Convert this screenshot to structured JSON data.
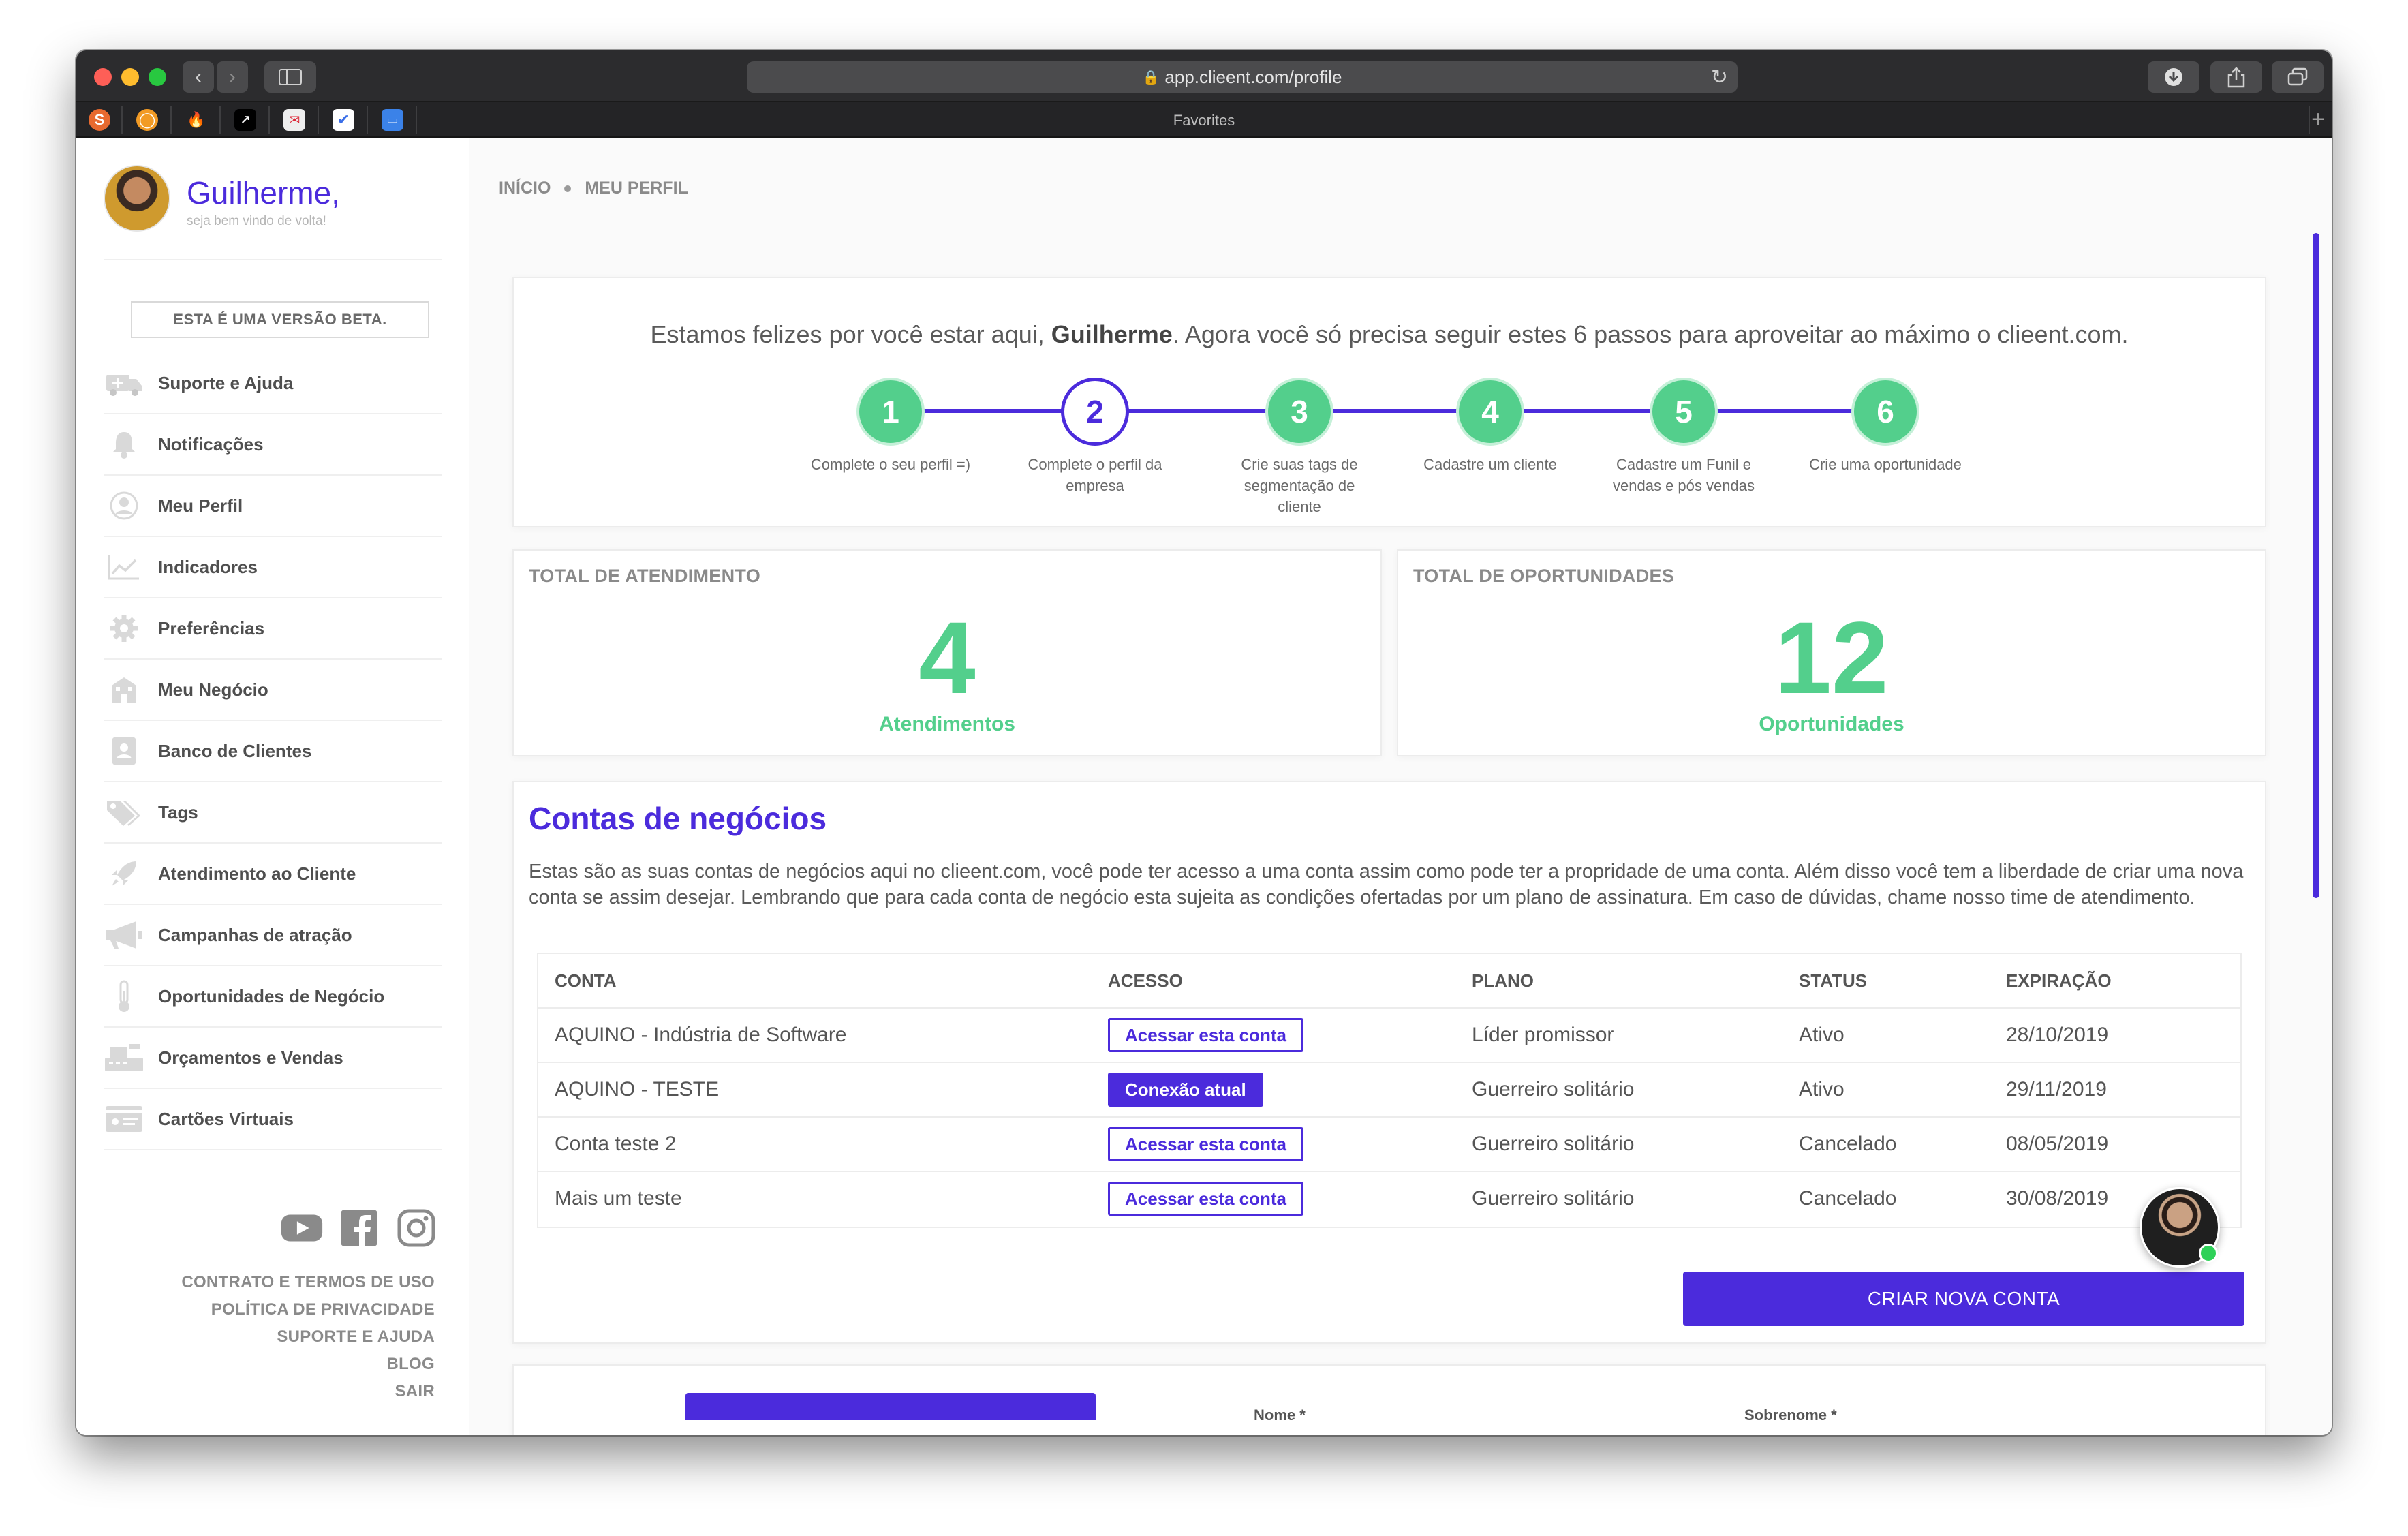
{
  "browser": {
    "url": "app.clieent.com/profile",
    "favorites_label": "Favorites"
  },
  "sidebar": {
    "user_name": "Guilherme,",
    "user_greeting": "seja bem vindo de volta!",
    "beta_label": "ESTA É UMA VERSÃO BETA.",
    "items": [
      {
        "label": "Suporte e Ajuda",
        "icon": "ambulance-icon"
      },
      {
        "label": "Notificações",
        "icon": "bell-icon"
      },
      {
        "label": "Meu Perfil",
        "icon": "user-circle-icon"
      },
      {
        "label": "Indicadores",
        "icon": "chart-line-icon"
      },
      {
        "label": "Preferências",
        "icon": "gear-icon"
      },
      {
        "label": "Meu Negócio",
        "icon": "building-icon"
      },
      {
        "label": "Banco de Clientes",
        "icon": "contact-card-icon"
      },
      {
        "label": "Tags",
        "icon": "tags-icon"
      },
      {
        "label": "Atendimento ao Cliente",
        "icon": "rocket-icon"
      },
      {
        "label": "Campanhas de atração",
        "icon": "megaphone-icon"
      },
      {
        "label": "Oportunidades de Negócio",
        "icon": "thermometer-icon"
      },
      {
        "label": "Orçamentos e Vendas",
        "icon": "cash-register-icon"
      },
      {
        "label": "Cartões Virtuais",
        "icon": "id-card-icon"
      }
    ],
    "social": [
      "youtube-icon",
      "facebook-icon",
      "instagram-icon"
    ],
    "footer_links": [
      "CONTRATO E TERMOS DE USO",
      "POLÍTICA DE PRIVACIDADE",
      "SUPORTE E AJUDA",
      "BLOG",
      "SAIR"
    ]
  },
  "breadcrumb": {
    "home": "INÍCIO",
    "current": "MEU PERFIL"
  },
  "welcome": {
    "text_before": "Estamos felizes por você estar aqui, ",
    "name": "Guilherme",
    "text_after": ". Agora você só precisa seguir estes 6 passos para aproveitar ao máximo o clieent.com.",
    "steps": [
      {
        "number": "1",
        "label": "Complete o seu perfil =)",
        "active": false
      },
      {
        "number": "2",
        "label": "Complete o perfil da empresa",
        "active": true
      },
      {
        "number": "3",
        "label": "Crie suas tags de segmentação de cliente",
        "active": false
      },
      {
        "number": "4",
        "label": "Cadastre um cliente",
        "active": false
      },
      {
        "number": "5",
        "label": "Cadastre um Funil e vendas e pós vendas",
        "active": false
      },
      {
        "number": "6",
        "label": "Crie uma oportunidade",
        "active": false
      }
    ]
  },
  "stats": [
    {
      "title": "TOTAL DE ATENDIMENTO",
      "value": "4",
      "label": "Atendimentos"
    },
    {
      "title": "TOTAL DE OPORTUNIDADES",
      "value": "12",
      "label": "Oportunidades"
    }
  ],
  "accounts": {
    "title": "Contas de negócios",
    "description": "Estas são as suas contas de negócios aqui no clieent.com, você pode ter acesso a uma conta assim como pode ter a propridade de uma conta. Além disso você tem a liberdade de criar uma nova conta se assim desejar. Lembrando que para cada conta de negócio esta sujeita as condições ofertadas por um plano de assinatura. Em caso de dúvidas, chame nosso time de atendimento.",
    "columns": [
      "CONTA",
      "ACESSO",
      "PLANO",
      "STATUS",
      "EXPIRAÇÃO"
    ],
    "rows": [
      {
        "conta": "AQUINO - Indústria de Software",
        "acesso": "Acessar esta conta",
        "current": false,
        "plano": "Líder promissor",
        "status": "Ativo",
        "expiracao": "28/10/2019"
      },
      {
        "conta": "AQUINO - TESTE",
        "acesso": "Conexão atual",
        "current": true,
        "plano": "Guerreiro solitário",
        "status": "Ativo",
        "expiracao": "29/11/2019"
      },
      {
        "conta": "Conta teste 2",
        "acesso": "Acessar esta conta",
        "current": false,
        "plano": "Guerreiro solitário",
        "status": "Cancelado",
        "expiracao": "08/05/2019"
      },
      {
        "conta": "Mais um teste",
        "acesso": "Acessar esta conta",
        "current": false,
        "plano": "Guerreiro solitário",
        "status": "Cancelado",
        "expiracao": "30/08/2019"
      }
    ],
    "new_account_label": "CRIAR NOVA CONTA"
  },
  "profile_form": {
    "first_name_label": "Nome *",
    "last_name_label": "Sobrenome *"
  },
  "colors": {
    "brand": "#4b2bdc",
    "success": "#53cf8c"
  }
}
